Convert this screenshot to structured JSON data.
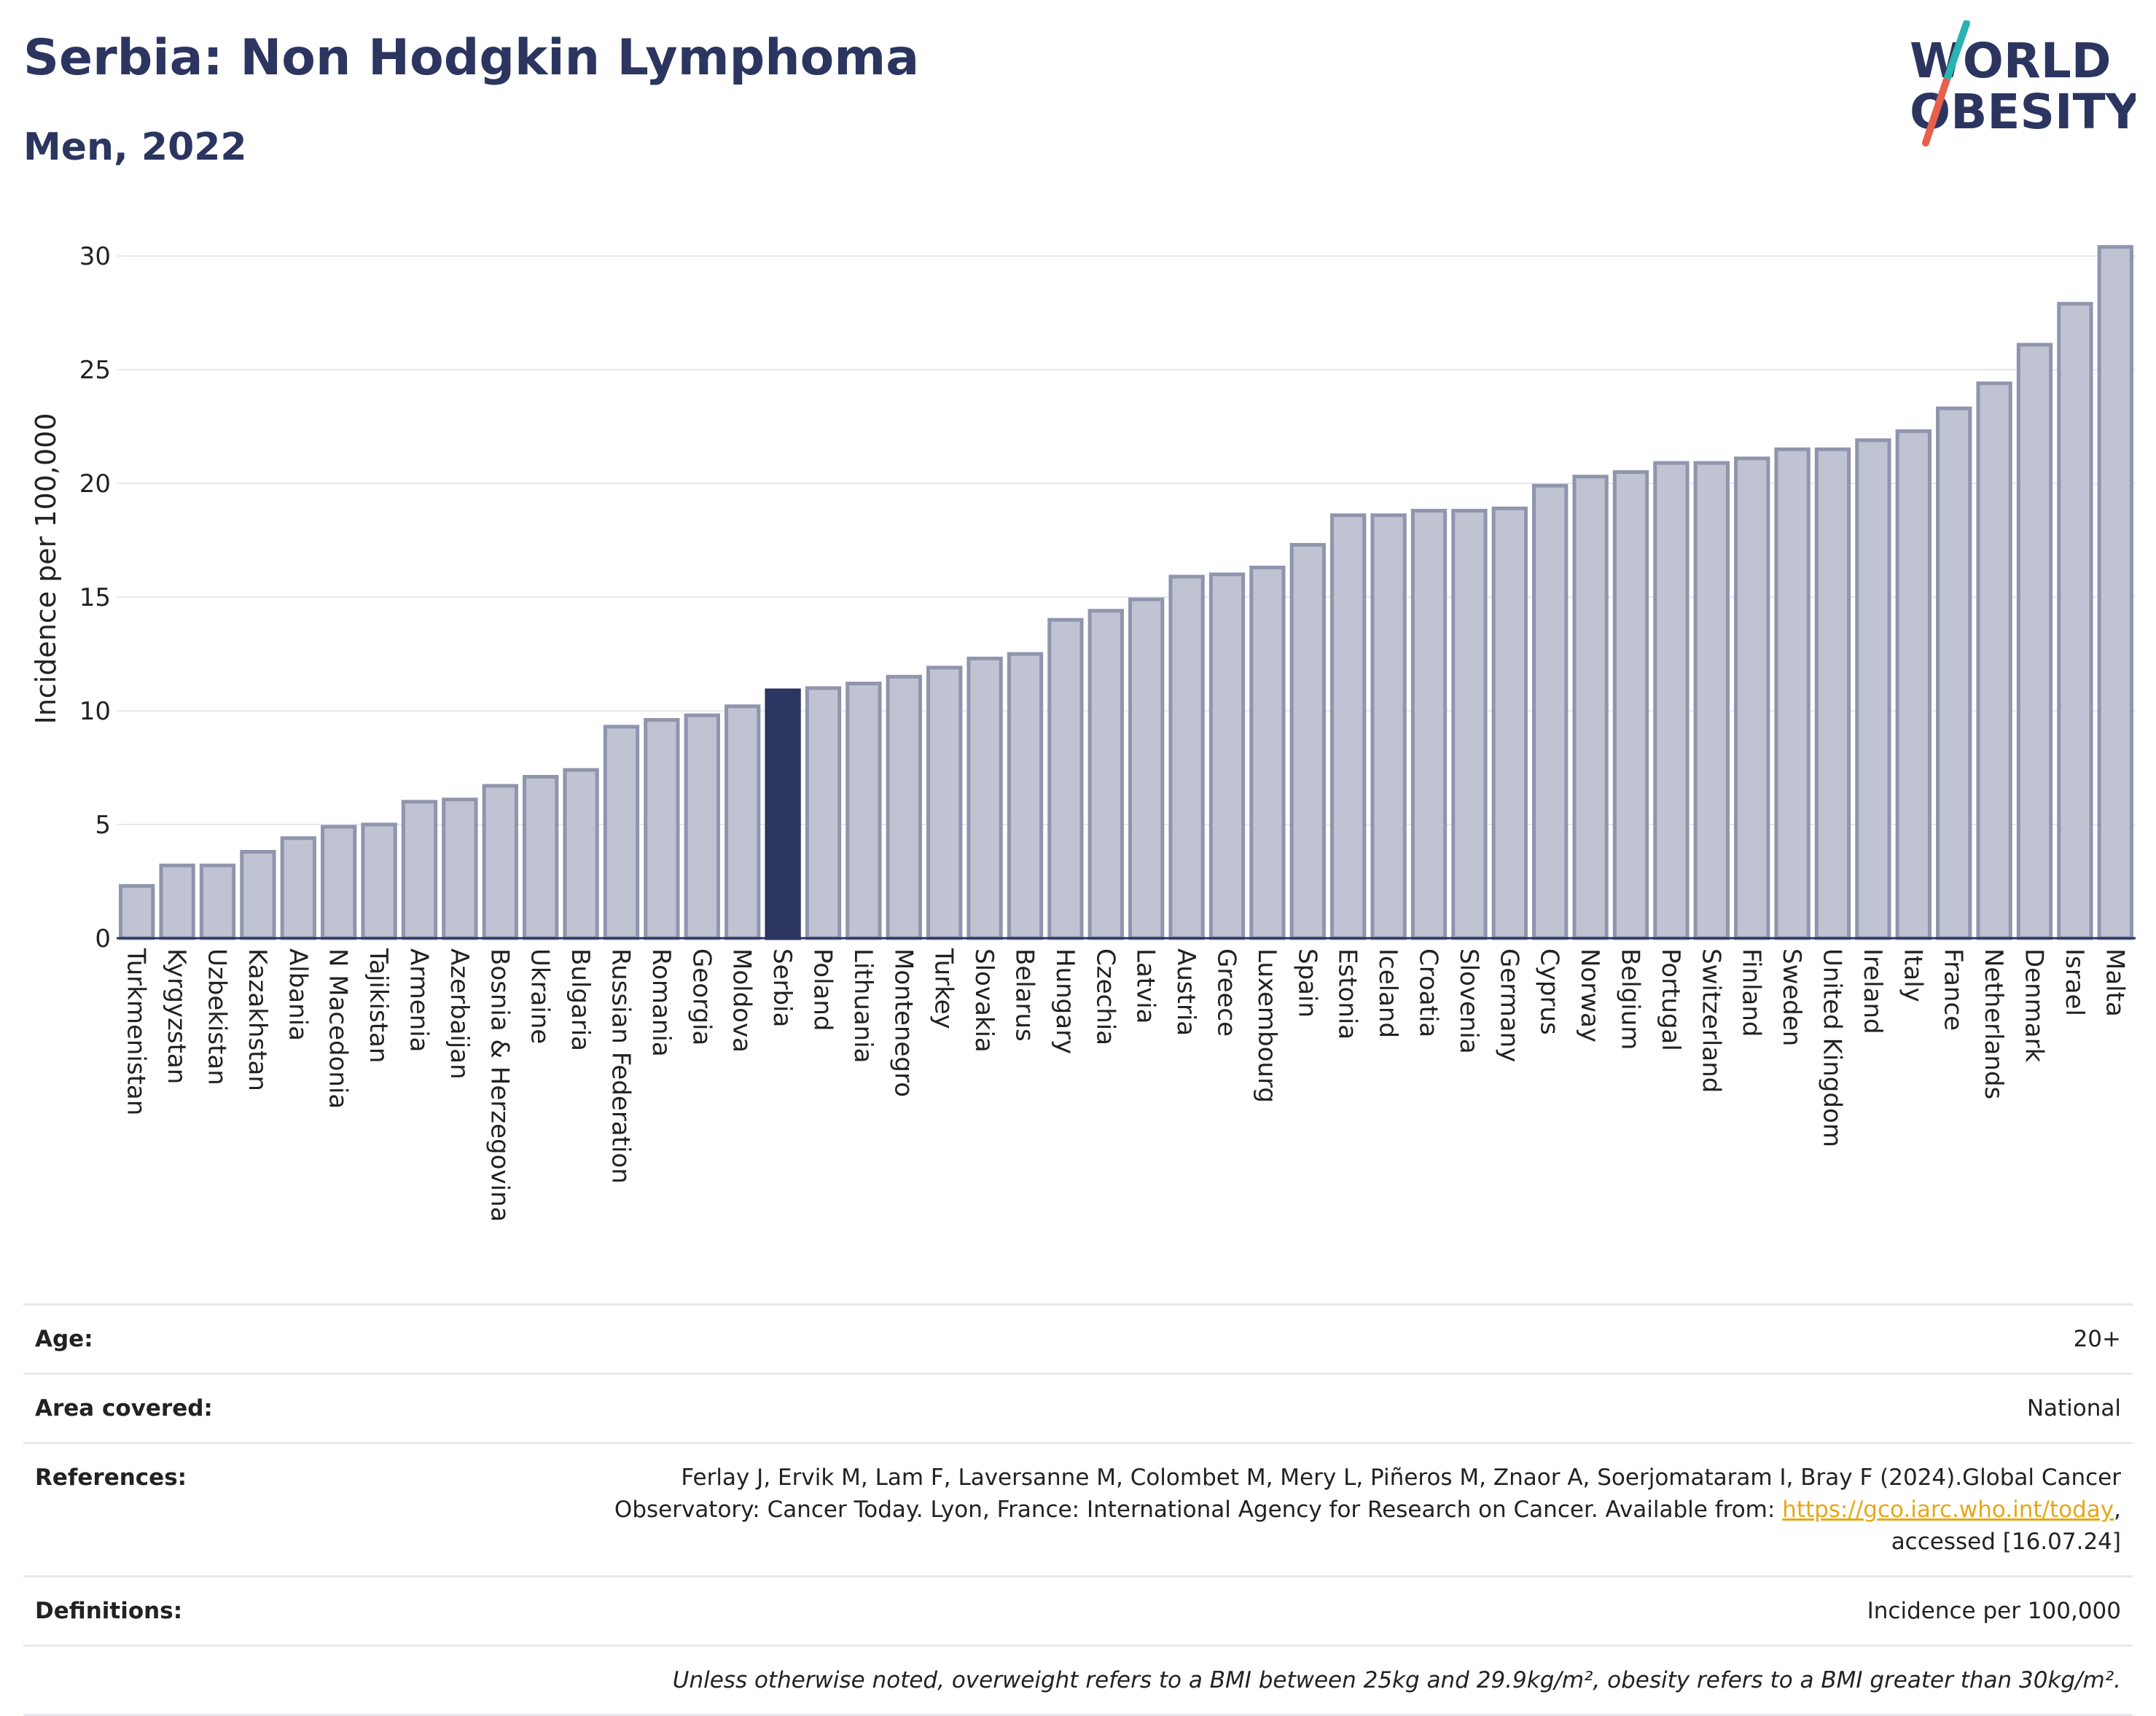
{
  "header": {
    "title": "Serbia: Non Hodgkin Lymphoma",
    "subtitle": "Men, 2022"
  },
  "logo": {
    "line1": "WORLD",
    "line2": "OBESITY",
    "text_color": "#2b3560",
    "slash_color_top": "#2bb3b1",
    "slash_color_bottom": "#e8604c"
  },
  "colors": {
    "bar": "#bfc3d2",
    "bar_border": "#8f95ad",
    "highlight": "#2b3560",
    "grid": "#e6e8ef",
    "axis": "#2b3560"
  },
  "chart_data": {
    "type": "bar",
    "ylabel": "Incidence per 100,000",
    "ylim": [
      0,
      31
    ],
    "yticks": [
      0,
      5,
      10,
      15,
      20,
      25,
      30
    ],
    "grid": true,
    "highlight": "Serbia",
    "categories": [
      "Turkmenistan",
      "Kyrgyzstan",
      "Uzbekistan",
      "Kazakhstan",
      "Albania",
      "N Macedonia",
      "Tajikistan",
      "Armenia",
      "Azerbaijan",
      "Bosnia & Herzegovina",
      "Ukraine",
      "Bulgaria",
      "Russian Federation",
      "Romania",
      "Georgia",
      "Moldova",
      "Serbia",
      "Poland",
      "Lithuania",
      "Montenegro",
      "Turkey",
      "Slovakia",
      "Belarus",
      "Hungary",
      "Czechia",
      "Latvia",
      "Austria",
      "Greece",
      "Luxembourg",
      "Spain",
      "Estonia",
      "Iceland",
      "Croatia",
      "Slovenia",
      "Germany",
      "Cyprus",
      "Norway",
      "Belgium",
      "Portugal",
      "Switzerland",
      "Finland",
      "Sweden",
      "United Kingdom",
      "Ireland",
      "Italy",
      "France",
      "Netherlands",
      "Denmark",
      "Israel",
      "Malta"
    ],
    "values": [
      2.3,
      3.2,
      3.2,
      3.8,
      4.4,
      4.9,
      5.0,
      6.0,
      6.1,
      6.7,
      7.1,
      7.4,
      9.3,
      9.6,
      9.8,
      10.2,
      10.9,
      11.0,
      11.2,
      11.5,
      11.9,
      12.3,
      12.5,
      14.0,
      14.4,
      14.9,
      15.9,
      16.0,
      16.3,
      17.3,
      18.6,
      18.6,
      18.8,
      18.8,
      18.9,
      19.9,
      20.3,
      20.5,
      20.9,
      20.9,
      21.1,
      21.5,
      21.5,
      21.9,
      22.3,
      23.3,
      24.4,
      26.1,
      27.9,
      30.4
    ]
  },
  "info": {
    "age_label": "Age:",
    "age_value": "20+",
    "area_label": "Area covered:",
    "area_value": "National",
    "references_label": "References:",
    "references_text_1": "Ferlay J, Ervik M, Lam F, Laversanne M, Colombet M, Mery L, Piñeros M, Znaor A, Soerjomataram I, Bray F (2024).Global Cancer Observatory: Cancer Today. Lyon, France: International Agency for Research on Cancer. Available from: ",
    "references_link": "https://gco.iarc.who.int/today",
    "references_text_2": ", accessed [16.07.24]",
    "definitions_label": "Definitions:",
    "definitions_value": "Incidence per 100,000",
    "note": "Unless otherwise noted, overweight refers to a BMI between 25kg and 29.9kg/m², obesity refers to a BMI greater than 30kg/m²."
  }
}
